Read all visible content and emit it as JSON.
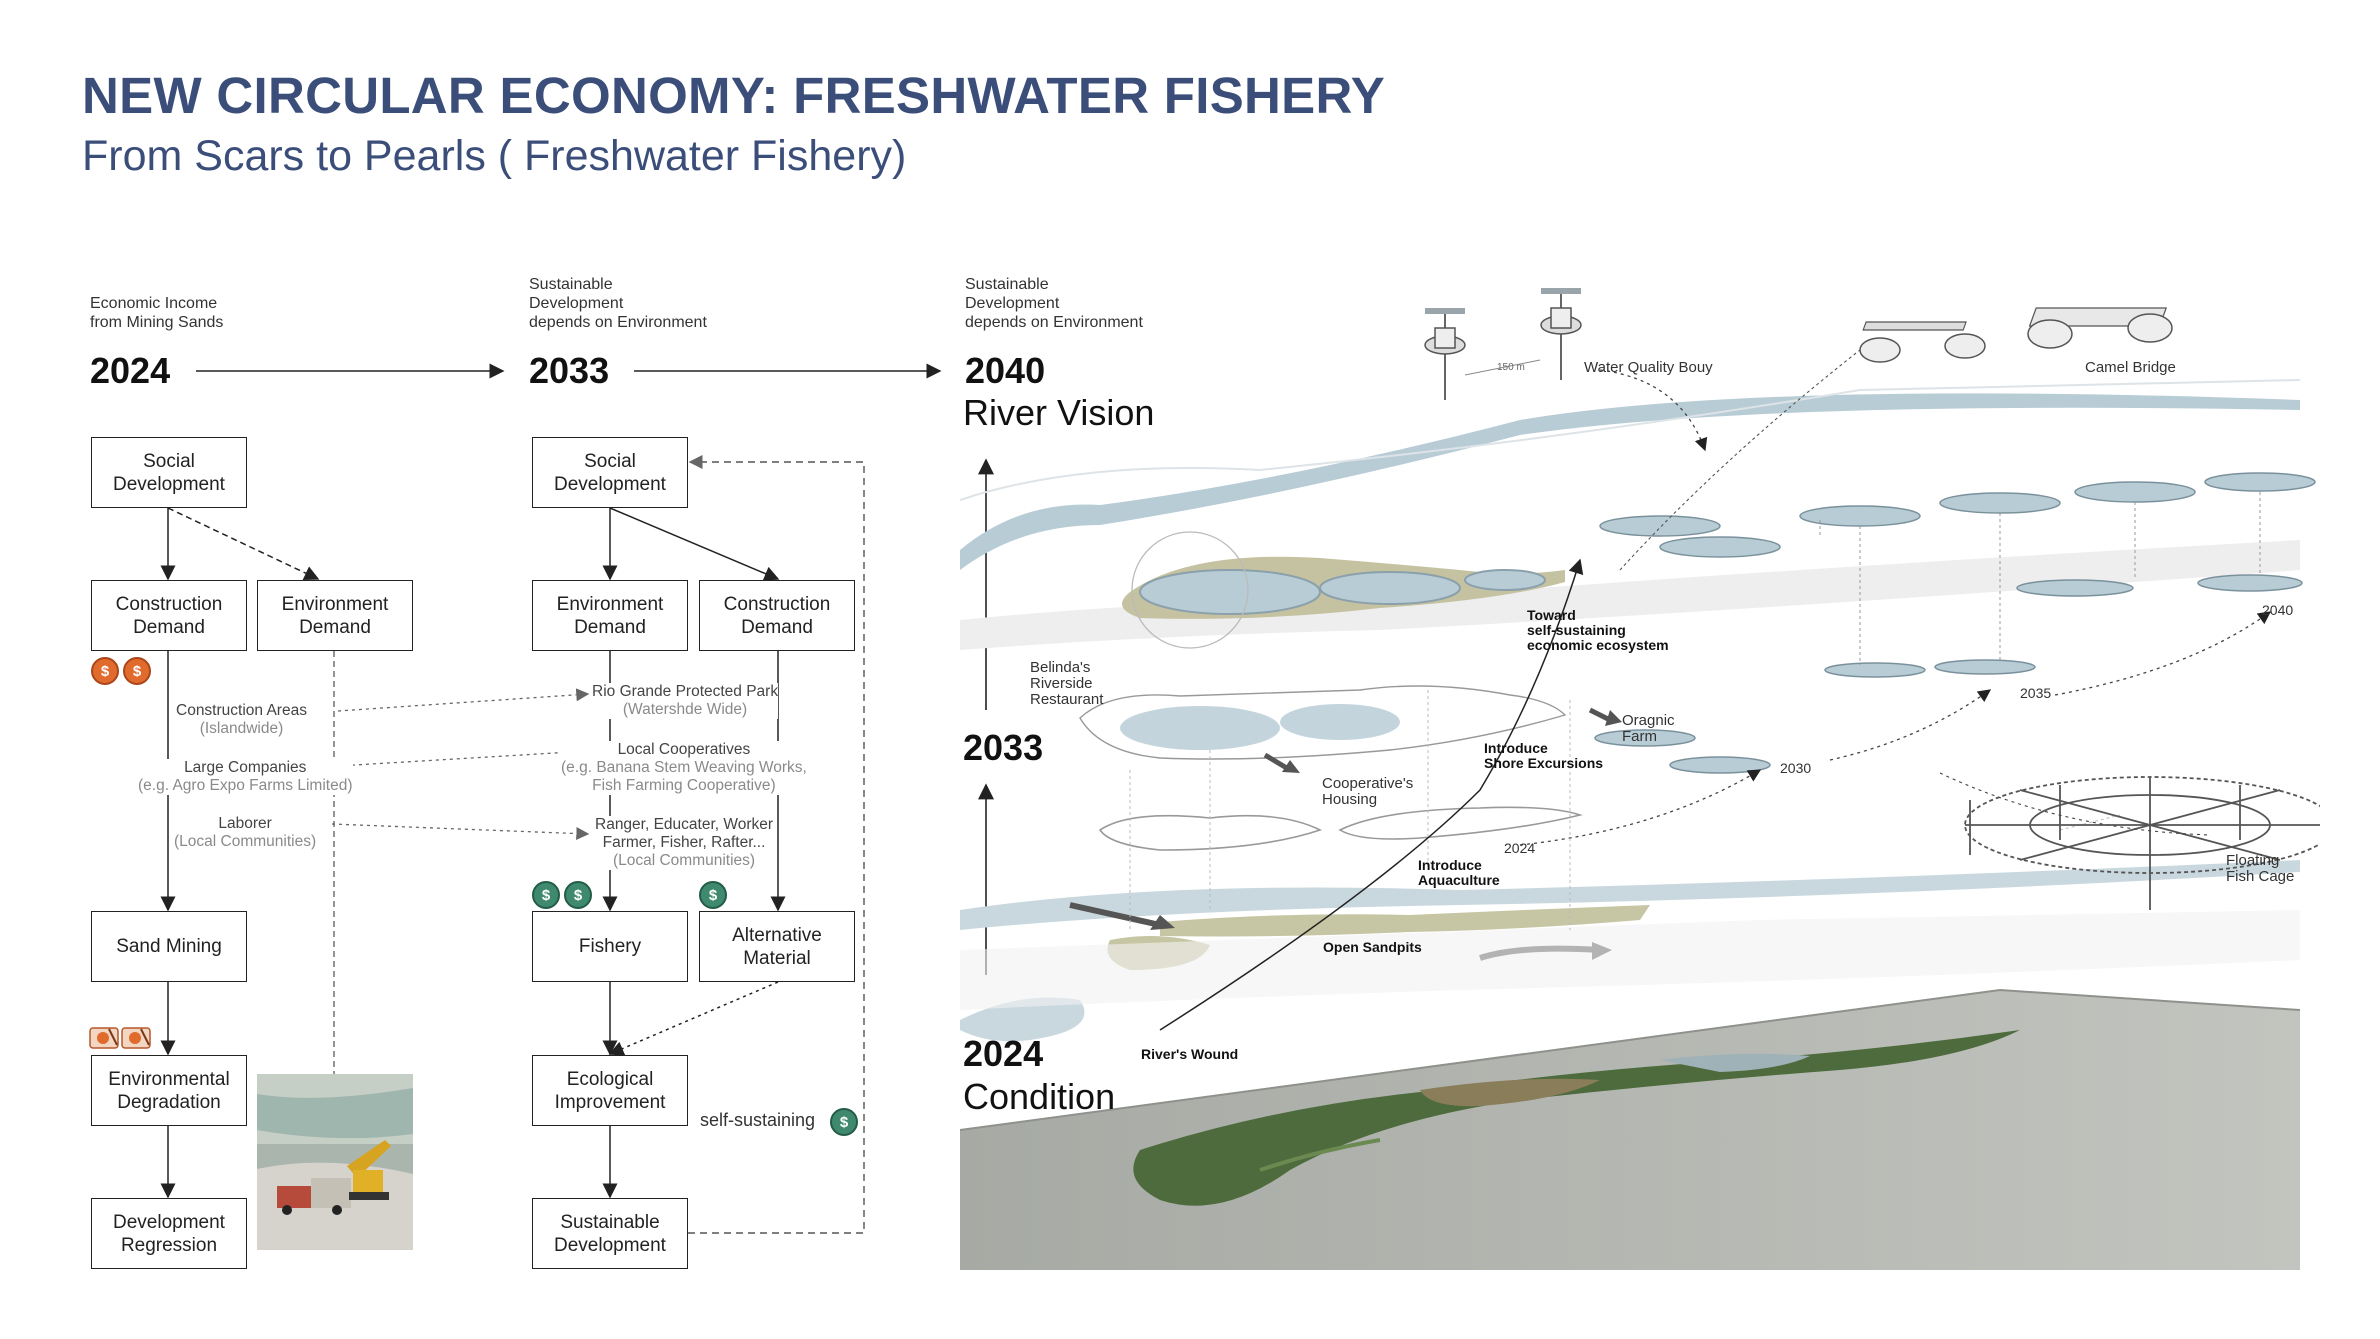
{
  "header": {
    "title": "NEW CIRCULAR ECONOMY: FRESHWATER FISHERY",
    "subtitle": "From Scars to Pearls ( Freshwater Fishery)"
  },
  "timeline": [
    {
      "caption_1": "Economic Income",
      "caption_2": "from Mining Sands",
      "caption_3": "",
      "year": "2024"
    },
    {
      "caption_1": "Sustainable",
      "caption_2": "Development",
      "caption_3": "depends on Environment",
      "year": "2033"
    },
    {
      "caption_1": "Sustainable",
      "caption_2": "Development",
      "caption_3": "depends on Environment",
      "year": "2040"
    }
  ],
  "river_vision_label": "River Vision",
  "flow_2024": {
    "social": "Social Development",
    "construction": "Construction Demand",
    "environment": "Environment Demand",
    "sand_mining": "Sand Mining",
    "degradation": "Environmental Degradation",
    "regression": "Development Regression",
    "notes": [
      {
        "main": "Construction Areas",
        "sub": "(Islandwide)"
      },
      {
        "main": "Large Companies",
        "sub": "(e.g. Agro Expo Farms Limited)"
      },
      {
        "main": "Laborer",
        "sub": "(Local Communities)"
      }
    ]
  },
  "flow_2033": {
    "social": "Social Development",
    "environment": "Environment Demand",
    "construction": "Construction Demand",
    "fishery": "Fishery",
    "alternative": "Alternative Material",
    "ecological": "Ecological Improvement",
    "sustainable": "Sustainable Development",
    "self_sustaining": "self-sustaining",
    "notes": [
      {
        "main": "Rio Grande Protected Park",
        "sub": "(Watershde Wide)",
        "sub2": ""
      },
      {
        "main": "Local Cooperatives",
        "sub": "(e.g. Banana Stem Weaving Works,",
        "sub2": "Fish Farming Cooperative)"
      },
      {
        "main": "Ranger, Educater, Worker",
        "sub": "Farmer, Fisher, Rafter...",
        "sub2": "(Local Communities)"
      }
    ]
  },
  "coin_symbol": "$",
  "diagram": {
    "year_2033": "2033",
    "year_2024": "2024",
    "condition": "Condition",
    "water_quality_bouy": "Water Quality Bouy",
    "camel_bridge": "Camel Bridge",
    "distance": "150 m",
    "belinda": [
      "Belinda's",
      "Riverside",
      "Restaurant"
    ],
    "toward": [
      "Toward",
      "self-sustaining",
      "economic ecosystem"
    ],
    "organic_farm": [
      "Oragnic",
      "Farm"
    ],
    "cooperative_housing": [
      "Cooperative's",
      "Housing"
    ],
    "shore_excursions": [
      "Introduce",
      "Shore Excursions"
    ],
    "aquaculture": [
      "Introduce",
      "Aquaculture"
    ],
    "open_sandpits": "Open Sandpits",
    "rivers_wound": "River's Wound",
    "floating_fish_cage": [
      "Floating",
      "Fish Cage"
    ],
    "year_marks": [
      "2024",
      "2030",
      "2035",
      "2040"
    ]
  },
  "colors": {
    "title": "#3b4e7a",
    "water": "#b8ccd6",
    "sand": "#c7c6a4",
    "coin_orange": "#e06b2c",
    "coin_green": "#3f8a6e"
  }
}
